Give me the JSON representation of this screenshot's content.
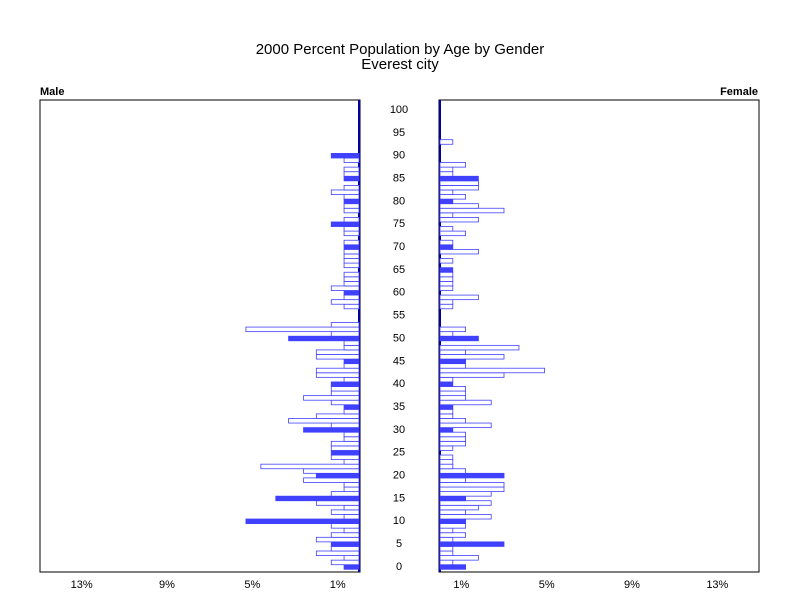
{
  "chart_data": {
    "type": "pyramid",
    "title": "2000 Percent Population by Age by Gender",
    "subtitle": "Everest city",
    "categories": [
      0,
      null,
      null,
      null,
      null,
      5,
      null,
      null,
      null,
      null,
      10,
      null,
      null,
      null,
      null,
      15,
      null,
      null,
      null,
      null,
      20,
      null,
      null,
      null,
      null,
      25,
      null,
      null,
      null,
      null,
      30,
      null,
      null,
      null,
      null,
      35,
      null,
      null,
      null,
      null,
      40,
      null,
      null,
      null,
      null,
      45,
      null,
      null,
      null,
      null,
      50,
      null,
      null,
      null,
      null,
      55,
      null,
      null,
      null,
      null,
      60,
      null,
      null,
      null,
      null,
      65,
      null,
      null,
      null,
      null,
      70,
      null,
      null,
      null,
      null,
      75,
      null,
      null,
      null,
      null,
      80,
      null,
      null,
      null,
      null,
      85,
      null,
      null,
      null,
      null,
      90,
      null,
      null,
      null,
      null,
      95,
      null,
      null,
      null,
      null,
      100
    ],
    "xlim": [
      0,
      15
    ],
    "xticks": [
      {
        "value": 1,
        "label": "1%"
      },
      {
        "value": 5,
        "label": "5%"
      },
      {
        "value": 9,
        "label": "9%"
      },
      {
        "value": 13,
        "label": "13%"
      }
    ],
    "series": [
      {
        "name": "Male",
        "color": "#4040ff",
        "values": [
          0.7,
          1.3,
          0.7,
          2.0,
          1.3,
          1.3,
          2.0,
          1.3,
          0.7,
          1.3,
          5.3,
          0.7,
          1.3,
          0.7,
          2.0,
          3.9,
          1.3,
          0.7,
          0.7,
          2.6,
          2.0,
          2.6,
          4.6,
          0.7,
          1.3,
          1.3,
          1.3,
          1.3,
          0.7,
          0.7,
          2.6,
          1.3,
          3.3,
          2.0,
          0.7,
          0.7,
          1.3,
          2.6,
          1.3,
          1.3,
          1.3,
          0.7,
          2.0,
          2.0,
          0.7,
          0.7,
          2.0,
          2.0,
          0.7,
          0.7,
          3.3,
          1.3,
          5.3,
          1.3,
          0,
          0,
          0,
          0.7,
          1.3,
          0.7,
          0.7,
          1.3,
          0.7,
          0.7,
          0.7,
          0,
          0.7,
          0.7,
          0.7,
          0.7,
          0.7,
          0.7,
          0,
          0.7,
          0.7,
          1.3,
          0.7,
          0,
          0.7,
          0.7,
          0.7,
          0.7,
          1.3,
          0.7,
          0,
          0.7,
          0.7,
          0.7,
          0,
          0.7,
          1.3,
          0,
          0,
          0,
          0,
          0,
          0,
          0,
          0,
          0,
          0
        ]
      },
      {
        "name": "Female",
        "color": "#4040ff",
        "values": [
          1.2,
          0.6,
          1.8,
          0.6,
          0.6,
          3.0,
          0.6,
          1.2,
          0.6,
          1.2,
          1.2,
          2.4,
          1.2,
          1.8,
          2.4,
          1.2,
          2.4,
          3.0,
          3.0,
          1.2,
          3.0,
          1.2,
          0.6,
          0.6,
          0.6,
          0,
          0.6,
          1.2,
          1.2,
          1.2,
          0.6,
          2.4,
          1.2,
          0.6,
          0.6,
          0.6,
          2.4,
          1.2,
          1.2,
          1.2,
          0.6,
          0.6,
          3.0,
          4.9,
          1.2,
          1.2,
          3.0,
          1.2,
          3.7,
          0,
          1.8,
          0.6,
          1.2,
          0,
          0,
          0,
          0,
          0.6,
          0.6,
          1.8,
          0,
          0.6,
          0.6,
          0.6,
          0.6,
          0.6,
          0,
          0.6,
          0,
          1.8,
          0.6,
          0.6,
          0,
          1.2,
          0.6,
          0,
          1.8,
          0.6,
          3.0,
          1.8,
          0.6,
          1.2,
          0.6,
          1.8,
          1.8,
          1.8,
          0.6,
          0.6,
          1.2,
          0,
          0,
          0,
          0,
          0.6,
          0,
          0,
          0,
          0,
          0,
          0,
          0
        ]
      }
    ]
  }
}
